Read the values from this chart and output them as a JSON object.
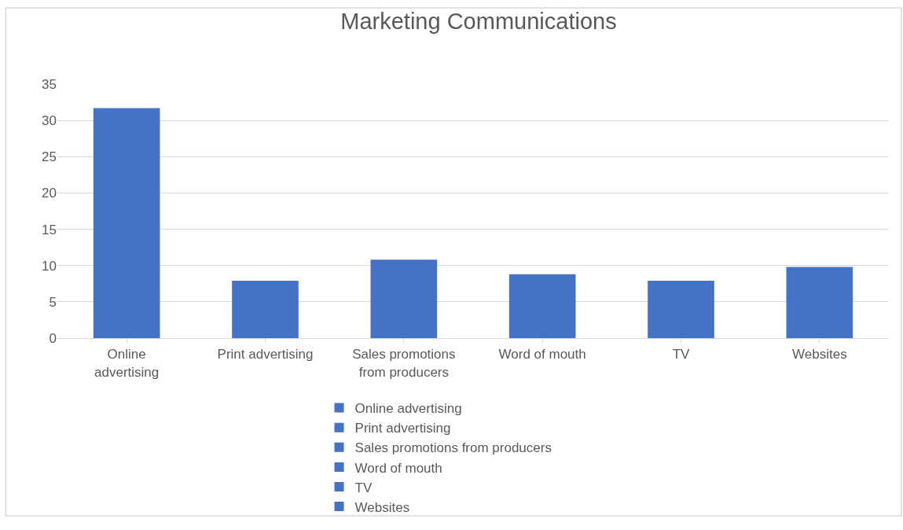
{
  "chart_data": {
    "type": "bar",
    "title": "Marketing Communications",
    "categories": [
      "Online advertising",
      "Print advertising",
      "Sales promotions from producers",
      "Word of mouth",
      "TV",
      "Websites"
    ],
    "series": [
      {
        "name": "Online advertising",
        "color": "#4472c4",
        "values": [
          31.7,
          null,
          null,
          null,
          null,
          null
        ]
      },
      {
        "name": "Print advertising",
        "color": "#4472c4",
        "values": [
          null,
          7.9,
          null,
          null,
          null,
          null
        ]
      },
      {
        "name": "Sales promotions from producers",
        "color": "#4472c4",
        "values": [
          null,
          null,
          10.8,
          null,
          null,
          null
        ]
      },
      {
        "name": "Word of mouth",
        "color": "#4472c4",
        "values": [
          null,
          null,
          null,
          8.8,
          null,
          null
        ]
      },
      {
        "name": "TV",
        "color": "#4472c4",
        "values": [
          null,
          null,
          null,
          null,
          7.9,
          null
        ]
      },
      {
        "name": "Websites",
        "color": "#4472c4",
        "values": [
          null,
          null,
          null,
          null,
          null,
          9.8
        ]
      }
    ],
    "ylim": [
      0,
      35
    ],
    "yticks": [
      0,
      5,
      10,
      15,
      20,
      25,
      30,
      35
    ],
    "grid": "y",
    "legend": "bottom"
  }
}
